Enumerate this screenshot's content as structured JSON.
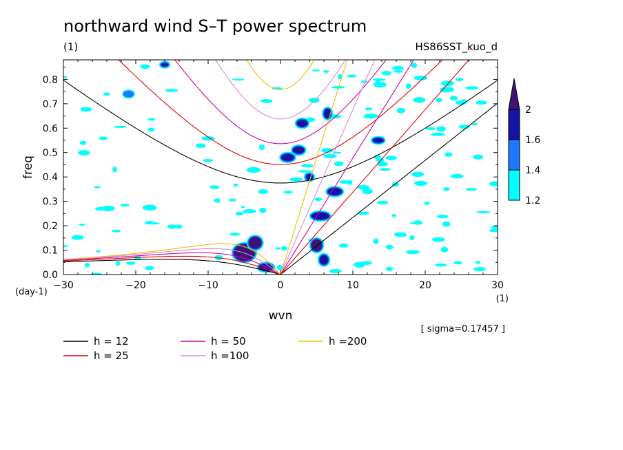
{
  "chart_data": {
    "type": "heatmap",
    "title": "northward wind S–T power spectrum",
    "subtitle_left": "(1)",
    "subtitle_right": "HS86SST_kuo_d",
    "xlabel": "wvn",
    "ylabel": "freq",
    "x_unit": "(1)",
    "y_unit": "(day-1)",
    "xlim": [
      -30,
      30
    ],
    "ylim": [
      0,
      0.88
    ],
    "x_ticks": [
      -30,
      -20,
      -10,
      0,
      10,
      20,
      30
    ],
    "x_tick_labels": [
      "−30",
      "−20",
      "−10",
      "0",
      "10",
      "20",
      "30"
    ],
    "y_ticks": [
      0,
      0.1,
      0.2,
      0.3,
      0.4,
      0.5,
      0.6,
      0.7,
      0.8
    ],
    "y_tick_labels": [
      "0.0",
      "0.1",
      "0.2",
      "0.3",
      "0.4",
      "0.5",
      "0.6",
      "0.7",
      "0.8"
    ],
    "annotation": "[ sigma=0.17457 ]",
    "colorbar": {
      "levels": [
        1.2,
        1.4,
        1.6,
        2
      ],
      "labels": [
        "1.2",
        "1.4",
        "1.6",
        "2"
      ],
      "colors": [
        "#00ffff",
        "#1e78ff",
        "#1414a0",
        "#3c1478"
      ]
    },
    "dispersion_curves": [
      {
        "label": "h = 12",
        "h": 12,
        "color": "#000000"
      },
      {
        "label": "h = 25",
        "h": 25,
        "color": "#e00000"
      },
      {
        "label": "h = 50",
        "h": 50,
        "color": "#d000a0"
      },
      {
        "label": "h =100",
        "h": 100,
        "color": "#d888d8"
      },
      {
        "label": "h =200",
        "h": 200,
        "color": "#e8c000"
      }
    ],
    "high_power_regions": [
      {
        "x": -5,
        "y": 0.09,
        "w": 3.0,
        "h": 0.07,
        "level": 2
      },
      {
        "x": -3.5,
        "y": 0.13,
        "w": 1.8,
        "h": 0.05,
        "level": 2
      },
      {
        "x": -2,
        "y": 0.03,
        "w": 2.0,
        "h": 0.03,
        "level": 1.6
      },
      {
        "x": 1,
        "y": 0.48,
        "w": 1.8,
        "h": 0.03,
        "level": 1.6
      },
      {
        "x": 2.5,
        "y": 0.51,
        "w": 1.6,
        "h": 0.03,
        "level": 1.6
      },
      {
        "x": 3,
        "y": 0.62,
        "w": 1.5,
        "h": 0.03,
        "level": 1.6
      },
      {
        "x": 4,
        "y": 0.4,
        "w": 1.0,
        "h": 0.025,
        "level": 1.6
      },
      {
        "x": 5.5,
        "y": 0.24,
        "w": 2.5,
        "h": 0.03,
        "level": 1.6
      },
      {
        "x": 7.5,
        "y": 0.34,
        "w": 2.0,
        "h": 0.03,
        "level": 1.6
      },
      {
        "x": 5,
        "y": 0.12,
        "w": 1.5,
        "h": 0.05,
        "level": 2
      },
      {
        "x": 6,
        "y": 0.06,
        "w": 1.2,
        "h": 0.04,
        "level": 1.6
      },
      {
        "x": 13.5,
        "y": 0.55,
        "w": 1.5,
        "h": 0.02,
        "level": 1.6
      },
      {
        "x": 6.5,
        "y": 0.66,
        "w": 1.0,
        "h": 0.04,
        "level": 1.6
      },
      {
        "x": -21,
        "y": 0.74,
        "w": 1.2,
        "h": 0.02,
        "level": 1.4
      },
      {
        "x": -16,
        "y": 0.86,
        "w": 1.0,
        "h": 0.015,
        "level": 1.6
      }
    ]
  },
  "legend": [
    {
      "label": "h = 12",
      "color": "#000000"
    },
    {
      "label": "h = 50",
      "color": "#d000a0"
    },
    {
      "label": "h =200",
      "color": "#e8c000"
    },
    {
      "label": "h = 25",
      "color": "#e00000"
    },
    {
      "label": "h =100",
      "color": "#d888d8"
    }
  ]
}
